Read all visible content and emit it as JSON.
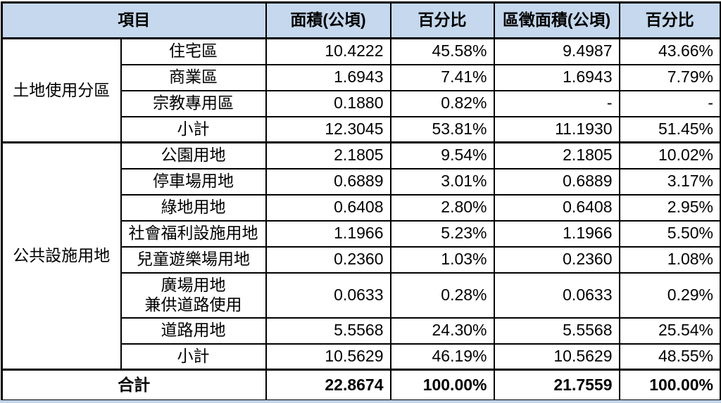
{
  "colors": {
    "header_bg": "#C5D8ED",
    "border": "#000000",
    "bottom_strip": "#C2D3E8",
    "text": "#000000"
  },
  "chart_data": {
    "type": "table",
    "title": "",
    "header": {
      "item_label": "項目",
      "columns": [
        "面積(公頃)",
        "百分比",
        "區徵面積(公頃)",
        "百分比"
      ]
    },
    "groups": [
      {
        "name": "土地使用分區",
        "rows": [
          {
            "label": "住宅區",
            "values": [
              "10.4222",
              "45.58%",
              "9.4987",
              "43.66%"
            ]
          },
          {
            "label": "商業區",
            "values": [
              "1.6943",
              "7.41%",
              "1.6943",
              "7.79%"
            ]
          },
          {
            "label": "宗教專用區",
            "values": [
              "0.1880",
              "0.82%",
              "-",
              "-"
            ]
          },
          {
            "label": "小計",
            "values": [
              "12.3045",
              "53.81%",
              "11.1930",
              "51.45%"
            ]
          }
        ]
      },
      {
        "name": "公共設施用地",
        "rows": [
          {
            "label": "公園用地",
            "values": [
              "2.1805",
              "9.54%",
              "2.1805",
              "10.02%"
            ]
          },
          {
            "label": "停車場用地",
            "values": [
              "0.6889",
              "3.01%",
              "0.6889",
              "3.17%"
            ]
          },
          {
            "label": "綠地用地",
            "values": [
              "0.6408",
              "2.80%",
              "0.6408",
              "2.95%"
            ]
          },
          {
            "label": "社會福利設施用地",
            "values": [
              "1.1966",
              "5.23%",
              "1.1966",
              "5.50%"
            ]
          },
          {
            "label": "兒童遊樂場用地",
            "values": [
              "0.2360",
              "1.03%",
              "0.2360",
              "1.08%"
            ]
          },
          {
            "label": "廣場用地\n兼供道路使用",
            "values": [
              "0.0633",
              "0.28%",
              "0.0633",
              "0.29%"
            ]
          },
          {
            "label": "道路用地",
            "values": [
              "5.5568",
              "24.30%",
              "5.5568",
              "25.54%"
            ]
          },
          {
            "label": "小計",
            "values": [
              "10.5629",
              "46.19%",
              "10.5629",
              "48.55%"
            ]
          }
        ]
      }
    ],
    "total": {
      "label": "合計",
      "values": [
        "22.8674",
        "100.00%",
        "21.7559",
        "100.00%"
      ]
    }
  }
}
